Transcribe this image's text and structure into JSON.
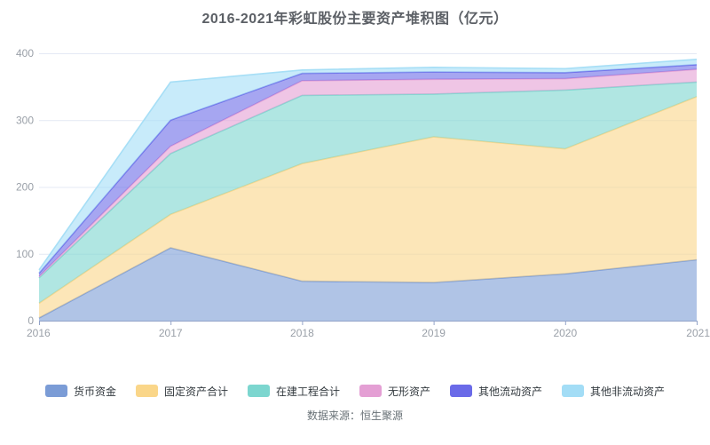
{
  "source_note": "数据来源：恒生聚源",
  "axis_color": "#93a3c8",
  "grid_color": "#e4e9f4",
  "chart_data": {
    "type": "area",
    "stacked": true,
    "title": "2016-2021年彩虹股份主要资产堆积图（亿元）",
    "xlabel": "",
    "ylabel": "",
    "x": [
      "2016",
      "2017",
      "2018",
      "2019",
      "2020",
      "2021"
    ],
    "series": [
      {
        "name": "货币资金",
        "color": "#7B9CD6",
        "values": [
          4,
          109,
          59,
          57,
          70,
          91
        ]
      },
      {
        "name": "固定资产合计",
        "color": "#FAD689",
        "values": [
          22,
          50,
          176,
          218,
          187,
          244
        ]
      },
      {
        "name": "在建工程合计",
        "color": "#7CD6CF",
        "values": [
          38,
          91,
          102,
          64,
          88,
          22
        ]
      },
      {
        "name": "无形资产",
        "color": "#E49FD4",
        "values": [
          2,
          11,
          22,
          22,
          17,
          19
        ]
      },
      {
        "name": "其他流动资产",
        "color": "#6A6AE8",
        "values": [
          5,
          39,
          11,
          11,
          9,
          7
        ]
      },
      {
        "name": "其他非流动资产",
        "color": "#A3DDF6",
        "values": [
          5,
          57,
          5,
          7,
          6,
          8
        ]
      }
    ],
    "ylim": [
      0,
      400
    ],
    "yticks": [
      0,
      100,
      200,
      300,
      400
    ],
    "grid": true,
    "legend_position": "bottom"
  }
}
